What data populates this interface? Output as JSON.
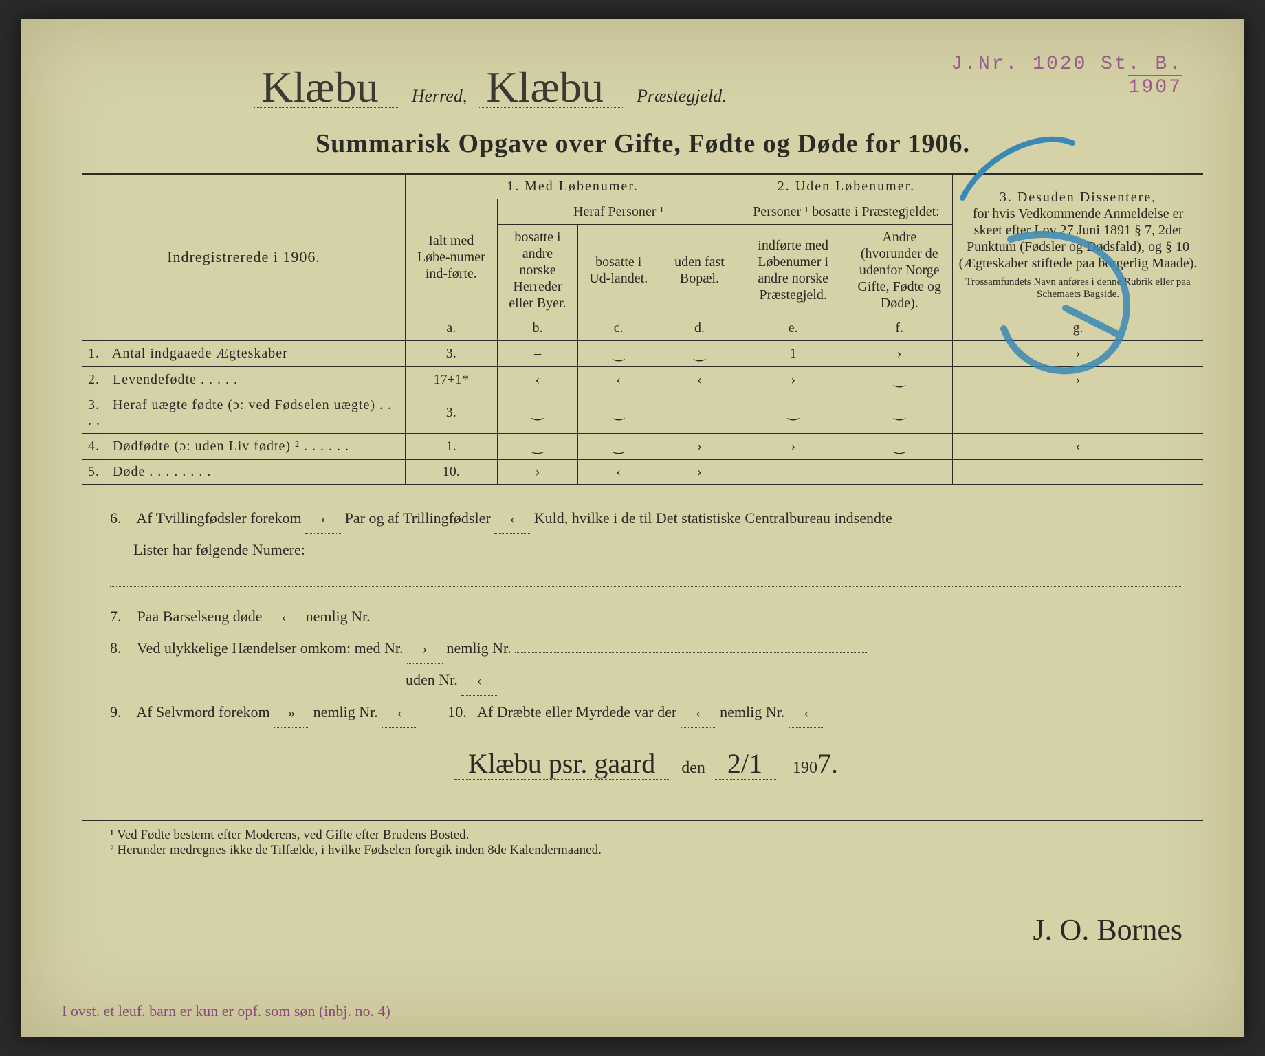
{
  "header": {
    "herred_value": "Klæbu",
    "herred_label": "Herred,",
    "praestegjeld_value": "Klæbu",
    "praestegjeld_label": "Præstegjeld."
  },
  "stamp": {
    "jnr": "J.Nr. 1020 St. B.",
    "year": "1907"
  },
  "title": "Summarisk Opgave over Gifte, Fødte og Døde for 1906.",
  "table": {
    "left_header": "Indregistrerede i 1906.",
    "group1": "1.  Med  Løbenumer.",
    "group2": "2. Uden Løbenumer.",
    "group3_line1": "3.  Desuden  Dissentere,",
    "group3_line2": "for hvis Vedkommende Anmeldelse er skeet efter Lov 27 Juni 1891 § 7, 2det Punktum (Fødsler og Dødsfald), og § 10 (Ægteskaber stiftede paa borgerlig Maade).",
    "group3_line3": "Trossamfundets Navn anføres i denne Rubrik eller paa Schemaets Bagside.",
    "ialt": "Ialt med Løbe-numer ind-førte.",
    "heraf": "Heraf Personer ¹",
    "col_b": "bosatte i andre norske Herreder eller Byer.",
    "col_c": "bosatte i Ud-landet.",
    "col_d": "uden fast Bopæl.",
    "personer2": "Personer ¹ bosatte i Præstegjeldet:",
    "col_e": "indførte med Løbenumer i andre norske Præstegjeld.",
    "col_f": "Andre (hvorunder de udenfor Norge Gifte, Fødte og Døde).",
    "letters": {
      "a": "a.",
      "b": "b.",
      "c": "c.",
      "d": "d.",
      "e": "e.",
      "f": "f.",
      "g": "g."
    },
    "rows": [
      {
        "n": "1.",
        "label": "Antal indgaaede Ægteskaber",
        "a": "3.",
        "b": "–",
        "c": "‿",
        "d": "‿",
        "e": "1",
        "f": "›",
        "g": "›"
      },
      {
        "n": "2.",
        "label": "Levendefødte   .   .   .   .   .",
        "a": "17+1*",
        "b": "‹",
        "c": "‹",
        "d": "‹",
        "e": "›",
        "f": "‿",
        "g": "›"
      },
      {
        "n": "3.",
        "label": "Heraf uægte fødte (ɔ: ved Fødselen uægte)   .   .   .   .",
        "a": "3.",
        "b": "‿",
        "c": "‿",
        "d": "",
        "e": "‿",
        "f": "‿",
        "g": ""
      },
      {
        "n": "4.",
        "label": "Dødfødte (ɔ: uden Liv fødte) ²   .   .   .   .   .   .",
        "a": "1.",
        "b": "‿",
        "c": "‿",
        "d": "›",
        "e": "›",
        "f": "‿",
        "g": "‹"
      },
      {
        "n": "5.",
        "label": "Døde .   .   .   .   .   .   .   .",
        "a": "10.",
        "b": "›",
        "c": "‹",
        "d": "›",
        "e": "",
        "f": "",
        "g": ""
      }
    ]
  },
  "lower": {
    "l6a": "Af Tvillingfødsler forekom",
    "l6_v1": "‹",
    "l6b": "Par og af Trillingfødsler",
    "l6_v2": "‹",
    "l6c": "Kuld, hvilke i de til Det statistiske Centralbureau indsendte",
    "l6d": "Lister har følgende Numere:",
    "l7a": "Paa Barselseng døde",
    "l7_v1": "‹",
    "l7b": "nemlig Nr.",
    "l8a": "Ved ulykkelige Hændelser omkom: med Nr.",
    "l8_v1": "›",
    "l8b": "nemlig Nr.",
    "l8c": "uden Nr.",
    "l8_v2": "‹",
    "l9a": "Af Selvmord forekom",
    "l9_v1": "»",
    "l9b": "nemlig Nr.",
    "l9_v2": "‹",
    "l10a": "Af Dræbte eller Myrdede var der",
    "l10_v1": "‹",
    "l10b": "nemlig Nr.",
    "l10_v2": "‹"
  },
  "signature_line": {
    "place": "Klæbu psr. gaard",
    "den": "den",
    "date": "2/1",
    "pre_year": "190",
    "year_digit": "7."
  },
  "signature": "J. O. Bornes",
  "footnotes": {
    "f1": "¹ Ved Fødte bestemt efter Moderens, ved Gifte efter Brudens Bosted.",
    "f2": "² Herunder medregnes ikke de Tilfælde, i hvilke Fødselen foregik inden 8de Kalendermaaned."
  },
  "margin_note": "I ovst. et leuf. barn er kun er opf. som søn (inbj. no. 4)",
  "colors": {
    "paper": "#d6d2a7",
    "ink": "#2b2b26",
    "stamp": "#9a5a8c",
    "blue_pencil": "#3a88b5"
  }
}
